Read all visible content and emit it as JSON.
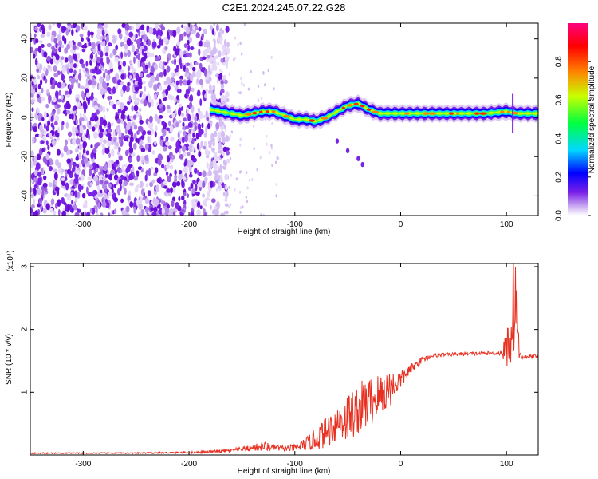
{
  "title": "C2E1.2024.245.07.22.G28",
  "chart_data": [
    {
      "type": "heatmap",
      "xlabel": "Height of straight line (km)",
      "ylabel": "Frequency (Hz)",
      "xlim": [
        -350,
        130
      ],
      "ylim": [
        -50,
        48
      ],
      "x_ticks": [
        -300,
        -200,
        -100,
        0,
        100
      ],
      "y_ticks": [
        -40,
        -20,
        0,
        20,
        40
      ],
      "colorbar": {
        "label": "Normalized spectral amplitude",
        "range": [
          0,
          1
        ],
        "ticks": [
          0.0,
          0.2,
          0.4,
          0.6,
          0.8
        ],
        "colormap": [
          "#ffffff",
          "#c8a8f0",
          "#7a20e8",
          "#0000ff",
          "#00d8ff",
          "#00ff40",
          "#c8ff00",
          "#ff8000",
          "#ff0000",
          "#ff0080"
        ]
      },
      "noise_region_x": [
        -350,
        -175
      ],
      "ridge": {
        "x": [
          -180,
          -170,
          -160,
          -150,
          -140,
          -130,
          -120,
          -110,
          -100,
          -90,
          -80,
          -70,
          -60,
          -50,
          -40,
          -30,
          -20,
          -10,
          0,
          20,
          40,
          60,
          80,
          100,
          110,
          130
        ],
        "freq_hz": [
          4,
          3,
          2,
          1,
          2,
          3,
          3,
          1,
          -1,
          -1,
          -2,
          0,
          3,
          6,
          7,
          4,
          2,
          2,
          2,
          2,
          2,
          2,
          2,
          3,
          2,
          2
        ]
      },
      "branch": {
        "x": [
          -60,
          -50,
          -40,
          -36
        ],
        "freq_hz": [
          -12,
          -17,
          -21,
          -24
        ]
      }
    },
    {
      "type": "line",
      "xlabel": "Height of straight line (km)",
      "ylabel": "SNR (10 * v/v)",
      "y_multiplier_label": "(x10⁴)",
      "xlim": [
        -350,
        130
      ],
      "ylim": [
        0,
        3.05
      ],
      "x_ticks": [
        -300,
        -200,
        -100,
        0,
        100
      ],
      "y_ticks": [
        1,
        2,
        3
      ],
      "color": "#e83020",
      "series": [
        {
          "x": [
            -350,
            -300,
            -250,
            -200,
            -180,
            -160,
            -140,
            -130,
            -120,
            -110,
            -100,
            -90,
            -80,
            -70,
            -60,
            -50,
            -40,
            -30,
            -20,
            -10,
            0,
            10,
            20,
            30,
            40,
            60,
            80,
            90,
            95,
            100,
            104,
            106,
            108,
            110,
            112,
            115,
            120,
            130
          ],
          "y": [
            0.03,
            0.03,
            0.03,
            0.04,
            0.05,
            0.07,
            0.11,
            0.14,
            0.12,
            0.1,
            0.11,
            0.17,
            0.26,
            0.37,
            0.52,
            0.6,
            0.74,
            0.84,
            0.95,
            1.07,
            1.2,
            1.37,
            1.52,
            1.58,
            1.6,
            1.61,
            1.62,
            1.62,
            1.63,
            1.68,
            2.0,
            2.4,
            2.9,
            2.2,
            1.6,
            1.55,
            1.57,
            1.57
          ],
          "noise_amplitude": [
            0.01,
            0.01,
            0.01,
            0.015,
            0.02,
            0.03,
            0.05,
            0.08,
            0.05,
            0.05,
            0.06,
            0.1,
            0.18,
            0.25,
            0.32,
            0.4,
            0.42,
            0.42,
            0.38,
            0.3,
            0.15,
            0.08,
            0.05,
            0.03,
            0.03,
            0.03,
            0.03,
            0.03,
            0.05,
            0.3,
            0.75,
            0.9,
            1.3,
            0.7,
            0.05,
            0.03,
            0.03,
            0.03
          ]
        }
      ]
    }
  ]
}
